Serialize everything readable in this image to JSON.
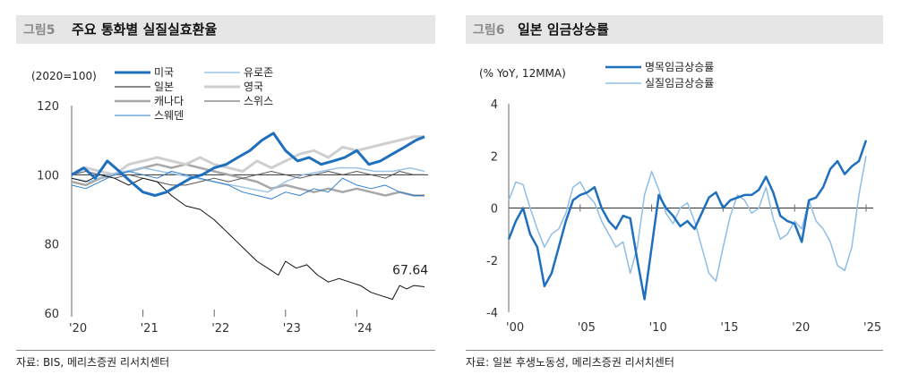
{
  "left": {
    "fig_no": "그림5",
    "title": "주요 통화별 실질실효환율",
    "source": "자료: BIS, 메리츠증권 리서치센터",
    "chart_data": {
      "type": "line",
      "unit_label": "(2020=100)",
      "ylim": [
        60,
        120
      ],
      "yticks": [
        60,
        80,
        100,
        120
      ],
      "xlim": [
        2020.0,
        2025.0
      ],
      "xticks": [
        2020,
        2021,
        2022,
        2023,
        2024
      ],
      "xtick_labels": [
        "'20",
        "'21",
        "'22",
        "'23",
        "'24"
      ],
      "annotation": {
        "text": "67.64",
        "x": 2024.75,
        "y": 67.64
      },
      "legend": [
        "미국",
        "유로존",
        "일본",
        "영국",
        "캐나다",
        "스위스",
        "스웨덴"
      ],
      "series": [
        {
          "name": "미국",
          "color": "#1f6fbf",
          "width": 3,
          "x": [
            2020.0,
            2020.17,
            2020.33,
            2020.5,
            2020.67,
            2020.83,
            2021.0,
            2021.17,
            2021.33,
            2021.5,
            2021.67,
            2021.83,
            2022.0,
            2022.17,
            2022.33,
            2022.5,
            2022.67,
            2022.83,
            2023.0,
            2023.17,
            2023.33,
            2023.5,
            2023.67,
            2023.83,
            2024.0,
            2024.17,
            2024.33,
            2024.5,
            2024.67,
            2024.83,
            2024.95
          ],
          "values": [
            100,
            102,
            99,
            104,
            101,
            98,
            95,
            94,
            95,
            97,
            99,
            100,
            102,
            103,
            105,
            107,
            110,
            112,
            107,
            104,
            105,
            103,
            104,
            105,
            107,
            103,
            104,
            106,
            108,
            110,
            111
          ]
        },
        {
          "name": "유로존",
          "color": "#9cc3e6",
          "width": 1.5,
          "x": [
            2020.0,
            2020.25,
            2020.5,
            2020.75,
            2021.0,
            2021.25,
            2021.5,
            2021.75,
            2022.0,
            2022.25,
            2022.5,
            2022.75,
            2023.0,
            2023.25,
            2023.5,
            2023.75,
            2024.0,
            2024.25,
            2024.5,
            2024.75,
            2024.95
          ],
          "values": [
            99,
            98,
            100,
            101,
            102,
            101,
            100,
            99,
            98,
            97,
            96,
            95,
            98,
            100,
            101,
            102,
            102,
            101,
            101,
            102,
            101
          ]
        },
        {
          "name": "일본",
          "color": "#111111",
          "width": 1,
          "x": [
            2020.0,
            2020.2,
            2020.4,
            2020.6,
            2020.8,
            2021.0,
            2021.2,
            2021.4,
            2021.6,
            2021.8,
            2022.0,
            2022.15,
            2022.3,
            2022.45,
            2022.6,
            2022.75,
            2022.9,
            2023.0,
            2023.15,
            2023.3,
            2023.45,
            2023.6,
            2023.75,
            2023.9,
            2024.05,
            2024.2,
            2024.35,
            2024.5,
            2024.6,
            2024.7,
            2024.8,
            2024.95
          ],
          "values": [
            99,
            98,
            100,
            99,
            97,
            99,
            98,
            94,
            91,
            90,
            87,
            84,
            81,
            78,
            75,
            73,
            71,
            75,
            73,
            74,
            71,
            69,
            70,
            69,
            68,
            66,
            65,
            64,
            68,
            67,
            68,
            67.64
          ]
        },
        {
          "name": "영국",
          "color": "#cfcfcf",
          "width": 3,
          "x": [
            2020.0,
            2020.2,
            2020.4,
            2020.6,
            2020.8,
            2021.0,
            2021.2,
            2021.4,
            2021.6,
            2021.8,
            2022.0,
            2022.2,
            2022.4,
            2022.6,
            2022.8,
            2023.0,
            2023.2,
            2023.4,
            2023.6,
            2023.8,
            2024.0,
            2024.2,
            2024.4,
            2024.6,
            2024.8,
            2024.95
          ],
          "values": [
            100,
            102,
            101,
            100,
            103,
            104,
            105,
            104,
            103,
            105,
            103,
            102,
            101,
            104,
            102,
            104,
            106,
            107,
            105,
            108,
            107,
            108,
            109,
            110,
            111,
            111
          ]
        },
        {
          "name": "캐나다",
          "color": "#a8a8a8",
          "width": 2.5,
          "x": [
            2020.0,
            2020.2,
            2020.4,
            2020.6,
            2020.8,
            2021.0,
            2021.2,
            2021.4,
            2021.6,
            2021.8,
            2022.0,
            2022.2,
            2022.4,
            2022.6,
            2022.8,
            2023.0,
            2023.2,
            2023.4,
            2023.6,
            2023.8,
            2024.0,
            2024.2,
            2024.4,
            2024.6,
            2024.8,
            2024.95
          ],
          "values": [
            98,
            97,
            99,
            100,
            101,
            102,
            103,
            102,
            103,
            102,
            101,
            100,
            99,
            98,
            96,
            97,
            96,
            95,
            96,
            95,
            96,
            95,
            94,
            95,
            94,
            94
          ]
        },
        {
          "name": "스위스",
          "color": "#555555",
          "width": 1,
          "x": [
            2020.0,
            2020.2,
            2020.4,
            2020.6,
            2020.8,
            2021.0,
            2021.2,
            2021.4,
            2021.6,
            2021.8,
            2022.0,
            2022.2,
            2022.4,
            2022.6,
            2022.8,
            2023.0,
            2023.2,
            2023.4,
            2023.6,
            2023.8,
            2024.0,
            2024.2,
            2024.4,
            2024.6,
            2024.8,
            2024.95
          ],
          "values": [
            100,
            101,
            100,
            99,
            100,
            99,
            98,
            97,
            97,
            98,
            99,
            98,
            99,
            100,
            101,
            100,
            99,
            100,
            101,
            100,
            101,
            100,
            99,
            101,
            100,
            100
          ]
        },
        {
          "name": "스웨덴",
          "color": "#2f7fd0",
          "width": 1,
          "x": [
            2020.0,
            2020.2,
            2020.4,
            2020.6,
            2020.8,
            2021.0,
            2021.2,
            2021.4,
            2021.6,
            2021.8,
            2022.0,
            2022.2,
            2022.4,
            2022.6,
            2022.8,
            2023.0,
            2023.2,
            2023.4,
            2023.6,
            2023.8,
            2024.0,
            2024.2,
            2024.4,
            2024.6,
            2024.8,
            2024.95
          ],
          "values": [
            97,
            96,
            98,
            100,
            101,
            100,
            99,
            101,
            100,
            99,
            98,
            97,
            95,
            94,
            93,
            95,
            94,
            96,
            95,
            99,
            97,
            96,
            97,
            95,
            94,
            94
          ]
        }
      ]
    }
  },
  "right": {
    "fig_no": "그림6",
    "title": "일본 임금상승률",
    "source": "자료: 일본 후생노동성, 메리츠증권 리서치센터",
    "chart_data": {
      "type": "line",
      "unit_label": "(% YoY, 12MMA)",
      "ylim": [
        -4,
        4
      ],
      "yticks": [
        -4,
        -2,
        0,
        2,
        4
      ],
      "xlim": [
        2000.0,
        2025.5
      ],
      "xticks": [
        2000,
        2005,
        2010,
        2015,
        2020,
        2025
      ],
      "xtick_labels": [
        "'00",
        "'05",
        "'10",
        "'15",
        "'20",
        "'25"
      ],
      "legend": [
        "명목임금상승률",
        "실질임금상승률"
      ],
      "series": [
        {
          "name": "명목임금상승률",
          "color": "#1f6fbf",
          "width": 2.5,
          "x": [
            2000.0,
            2000.5,
            2001.0,
            2001.5,
            2002.0,
            2002.5,
            2003.0,
            2003.5,
            2004.0,
            2004.5,
            2005.0,
            2005.5,
            2006.0,
            2006.5,
            2007.0,
            2007.5,
            2008.0,
            2008.5,
            2009.0,
            2009.5,
            2010.0,
            2010.5,
            2011.0,
            2011.5,
            2012.0,
            2012.5,
            2013.0,
            2013.5,
            2014.0,
            2014.5,
            2015.0,
            2015.5,
            2016.0,
            2016.5,
            2017.0,
            2017.5,
            2018.0,
            2018.5,
            2019.0,
            2019.5,
            2020.0,
            2020.5,
            2021.0,
            2021.5,
            2022.0,
            2022.5,
            2023.0,
            2023.5,
            2024.0,
            2024.5,
            2025.0
          ],
          "values": [
            -1.2,
            -0.5,
            0.0,
            -1.0,
            -1.5,
            -3.0,
            -2.5,
            -1.5,
            -0.5,
            0.3,
            0.5,
            0.6,
            0.8,
            0.0,
            -0.5,
            -0.8,
            -0.3,
            -0.4,
            -2.0,
            -3.5,
            -1.5,
            0.5,
            0.0,
            -0.3,
            -0.7,
            -0.5,
            -0.8,
            -0.2,
            0.4,
            0.6,
            0.0,
            0.3,
            0.4,
            0.5,
            0.5,
            0.7,
            1.2,
            0.6,
            -0.3,
            -0.5,
            -0.6,
            -1.3,
            0.3,
            0.4,
            0.8,
            1.5,
            1.8,
            1.3,
            1.6,
            1.8,
            2.6
          ]
        },
        {
          "name": "실질임금상승률",
          "color": "#8fbde6",
          "width": 1.5,
          "x": [
            2000.0,
            2000.5,
            2001.0,
            2001.5,
            2002.0,
            2002.5,
            2003.0,
            2003.5,
            2004.0,
            2004.5,
            2005.0,
            2005.5,
            2006.0,
            2006.5,
            2007.0,
            2007.5,
            2008.0,
            2008.5,
            2009.0,
            2009.5,
            2010.0,
            2010.5,
            2011.0,
            2011.5,
            2012.0,
            2012.5,
            2013.0,
            2013.5,
            2014.0,
            2014.5,
            2015.0,
            2015.5,
            2016.0,
            2016.5,
            2017.0,
            2017.5,
            2018.0,
            2018.5,
            2019.0,
            2019.5,
            2020.0,
            2020.5,
            2021.0,
            2021.5,
            2022.0,
            2022.5,
            2023.0,
            2023.5,
            2024.0,
            2024.5,
            2025.0
          ],
          "values": [
            0.3,
            1.0,
            0.9,
            0.0,
            -0.8,
            -1.5,
            -1.0,
            -0.8,
            -0.2,
            0.8,
            1.0,
            0.5,
            0.2,
            -0.5,
            -1.0,
            -1.5,
            -1.3,
            -2.5,
            -1.5,
            0.5,
            1.4,
            0.7,
            -0.2,
            -0.6,
            0.0,
            0.2,
            -0.5,
            -1.5,
            -2.5,
            -2.8,
            -1.5,
            -0.3,
            0.5,
            0.3,
            -0.2,
            0.0,
            0.8,
            -0.4,
            -1.2,
            -1.0,
            -0.5,
            -0.8,
            0.3,
            -0.5,
            -0.8,
            -1.3,
            -2.2,
            -2.4,
            -1.5,
            0.5,
            2.0
          ]
        }
      ]
    }
  }
}
